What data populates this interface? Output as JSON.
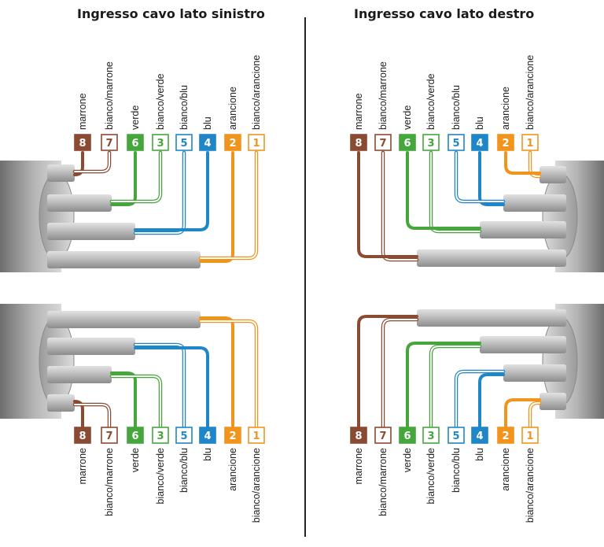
{
  "titles": {
    "left": "Ingresso cavo lato sinistro",
    "right": "Ingresso cavo lato destro"
  },
  "pins": [
    {
      "number": "8",
      "label": "marrone",
      "color": "#8b4a32",
      "style": "solid"
    },
    {
      "number": "7",
      "label": "bianco/marrone",
      "color": "#8b4a32",
      "style": "striped"
    },
    {
      "number": "6",
      "label": "verde",
      "color": "#45a63c",
      "style": "solid"
    },
    {
      "number": "3",
      "label": "bianco/verde",
      "color": "#45a63c",
      "style": "striped"
    },
    {
      "number": "5",
      "label": "bianco/blu",
      "color": "#1f86c7",
      "style": "striped"
    },
    {
      "number": "4",
      "label": "blu",
      "color": "#1f86c7",
      "style": "solid"
    },
    {
      "number": "2",
      "label": "arancione",
      "color": "#f0941e",
      "style": "solid"
    },
    {
      "number": "1",
      "label": "bianco/arancione",
      "color": "#f0941e",
      "style": "striped"
    }
  ],
  "colors": {
    "cable_gray": "#9a9a9a",
    "divider": "#222222"
  }
}
